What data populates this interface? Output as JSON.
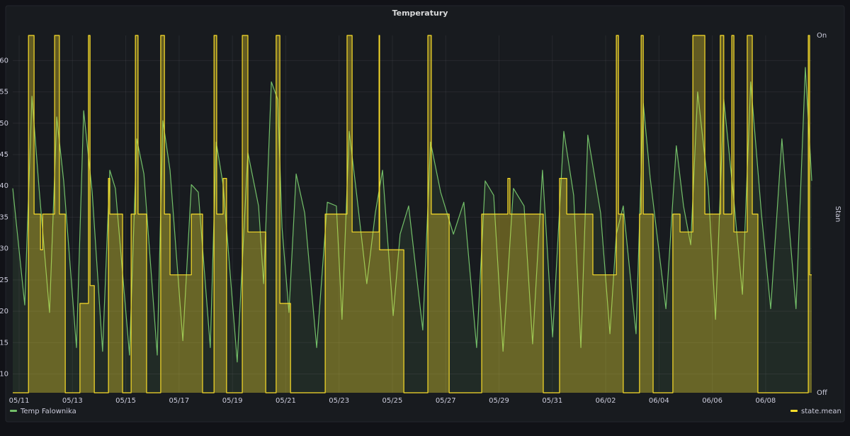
{
  "chart_data": {
    "type": "line",
    "title": "Temperatury",
    "y2label": "Stan",
    "grid": true,
    "legend": "bottom",
    "xlim": [
      -0.24,
      29.73
    ],
    "xticks": [
      {
        "value": 0,
        "label": "05/11"
      },
      {
        "value": 2,
        "label": "05/13"
      },
      {
        "value": 4,
        "label": "05/15"
      },
      {
        "value": 6,
        "label": "05/17"
      },
      {
        "value": 8,
        "label": "05/19"
      },
      {
        "value": 10,
        "label": "05/21"
      },
      {
        "value": 12,
        "label": "05/23"
      },
      {
        "value": 14,
        "label": "05/25"
      },
      {
        "value": 16,
        "label": "05/27"
      },
      {
        "value": 18,
        "label": "05/29"
      },
      {
        "value": 20,
        "label": "05/31"
      },
      {
        "value": 22,
        "label": "06/02"
      },
      {
        "value": 24,
        "label": "06/04"
      },
      {
        "value": 26,
        "label": "06/06"
      },
      {
        "value": 28,
        "label": "06/08"
      }
    ],
    "ylim": [
      7,
      64
    ],
    "yticks": [
      10,
      15,
      20,
      25,
      30,
      35,
      40,
      45,
      50,
      55,
      60
    ],
    "y2lim": [
      0,
      1
    ],
    "y2ticks": [
      {
        "value": 0,
        "label": "Off"
      },
      {
        "value": 1,
        "label": "On"
      }
    ],
    "series": [
      {
        "name": "Temp Falownika",
        "color": "#73bf69",
        "fill": true,
        "x": [
          -0.24,
          0.21,
          0.48,
          0.74,
          1.14,
          1.41,
          1.67,
          2.15,
          2.42,
          2.74,
          3.13,
          3.4,
          3.61,
          4.14,
          4.41,
          4.68,
          5.18,
          5.39,
          5.66,
          6.14,
          6.46,
          6.72,
          7.17,
          7.39,
          7.65,
          8.18,
          8.58,
          8.98,
          9.17,
          9.46,
          9.7,
          9.86,
          10.12,
          10.39,
          10.71,
          11.16,
          11.56,
          11.9,
          12.11,
          12.38,
          12.65,
          13.04,
          13.36,
          13.63,
          14.03,
          14.29,
          14.61,
          15.14,
          15.43,
          15.81,
          16.29,
          16.68,
          17.16,
          17.48,
          17.8,
          18.15,
          18.54,
          18.94,
          19.26,
          19.63,
          20.01,
          20.43,
          20.8,
          21.07,
          21.33,
          21.81,
          22.16,
          22.4,
          22.66,
          23.14,
          23.41,
          23.67,
          24.26,
          24.65,
          24.92,
          25.19,
          25.45,
          25.85,
          26.12,
          26.43,
          26.78,
          27.13,
          27.44,
          27.84,
          28.19,
          28.61,
          29.14,
          29.49,
          29.73
        ],
        "values": [
          39.6,
          21,
          54.3,
          40,
          19.8,
          51,
          40.8,
          14.2,
          52,
          39,
          13.6,
          42.5,
          39.6,
          13,
          47.5,
          41.9,
          13,
          50.4,
          42.5,
          15.3,
          40.2,
          39,
          14.2,
          47,
          40.2,
          11.9,
          45.3,
          36.8,
          24.4,
          56.6,
          53.8,
          33.4,
          19.8,
          41.9,
          35.7,
          14.2,
          37.4,
          36.8,
          18.7,
          48.7,
          39,
          24.4,
          35.7,
          42.5,
          19.3,
          32.3,
          36.8,
          17,
          47,
          39,
          32.3,
          37.4,
          14.2,
          40.8,
          38.5,
          13.6,
          39.6,
          36.8,
          14.8,
          42.5,
          15.9,
          48.7,
          38.5,
          14.2,
          48.1,
          35.7,
          16.4,
          32.3,
          36.8,
          16.4,
          53.2,
          41.3,
          20.4,
          46.4,
          36.8,
          30.6,
          55,
          39.6,
          18.7,
          53.8,
          39,
          22.7,
          56.6,
          35.7,
          20.4,
          47.5,
          20.4,
          58.9,
          40.8
        ]
      },
      {
        "name": "state.mean",
        "color": "#fade2a",
        "axis": "y2",
        "step": true,
        "fill": true,
        "x": [
          -0.24,
          0.35,
          0.56,
          0.8,
          0.88,
          1.33,
          1.51,
          1.73,
          2.28,
          2.6,
          2.66,
          2.82,
          3.35,
          3.4,
          3.88,
          4.2,
          4.36,
          4.46,
          4.78,
          5.31,
          5.45,
          5.66,
          6.46,
          6.88,
          7.31,
          7.41,
          7.65,
          7.78,
          8.37,
          8.58,
          9.25,
          9.64,
          9.78,
          10.18,
          11.48,
          12.3,
          12.49,
          13.5,
          13.52,
          14.43,
          15.33,
          15.46,
          16.13,
          17.35,
          18.33,
          18.41,
          19.66,
          20.27,
          20.54,
          21.52,
          22.4,
          22.48,
          22.66,
          23.27,
          23.33,
          23.41,
          23.78,
          24.52,
          24.79,
          25.27,
          25.72,
          26.3,
          26.43,
          26.73,
          26.81,
          27.31,
          27.5,
          27.71,
          29.6,
          29.65,
          29.73
        ],
        "values": [
          0,
          1,
          0.5,
          0.4,
          0.5,
          1,
          0.5,
          0,
          0.25,
          1,
          0.3,
          0,
          0.6,
          0.5,
          0,
          0.5,
          1,
          0.5,
          0,
          1,
          0.5,
          0.33,
          0.5,
          0,
          1,
          0.5,
          0.6,
          0,
          1,
          0.45,
          0,
          1,
          0.25,
          0,
          0.5,
          1,
          0.45,
          1,
          0.4,
          0,
          1,
          0.5,
          0,
          0.5,
          0.6,
          0.5,
          0,
          0.6,
          0.5,
          0.33,
          1,
          0.5,
          0,
          0.5,
          1,
          0.5,
          0,
          0.5,
          0.45,
          1,
          0.5,
          1,
          0.5,
          1,
          0.45,
          1,
          0.5,
          0,
          1,
          0.33,
          0.33
        ]
      }
    ]
  }
}
